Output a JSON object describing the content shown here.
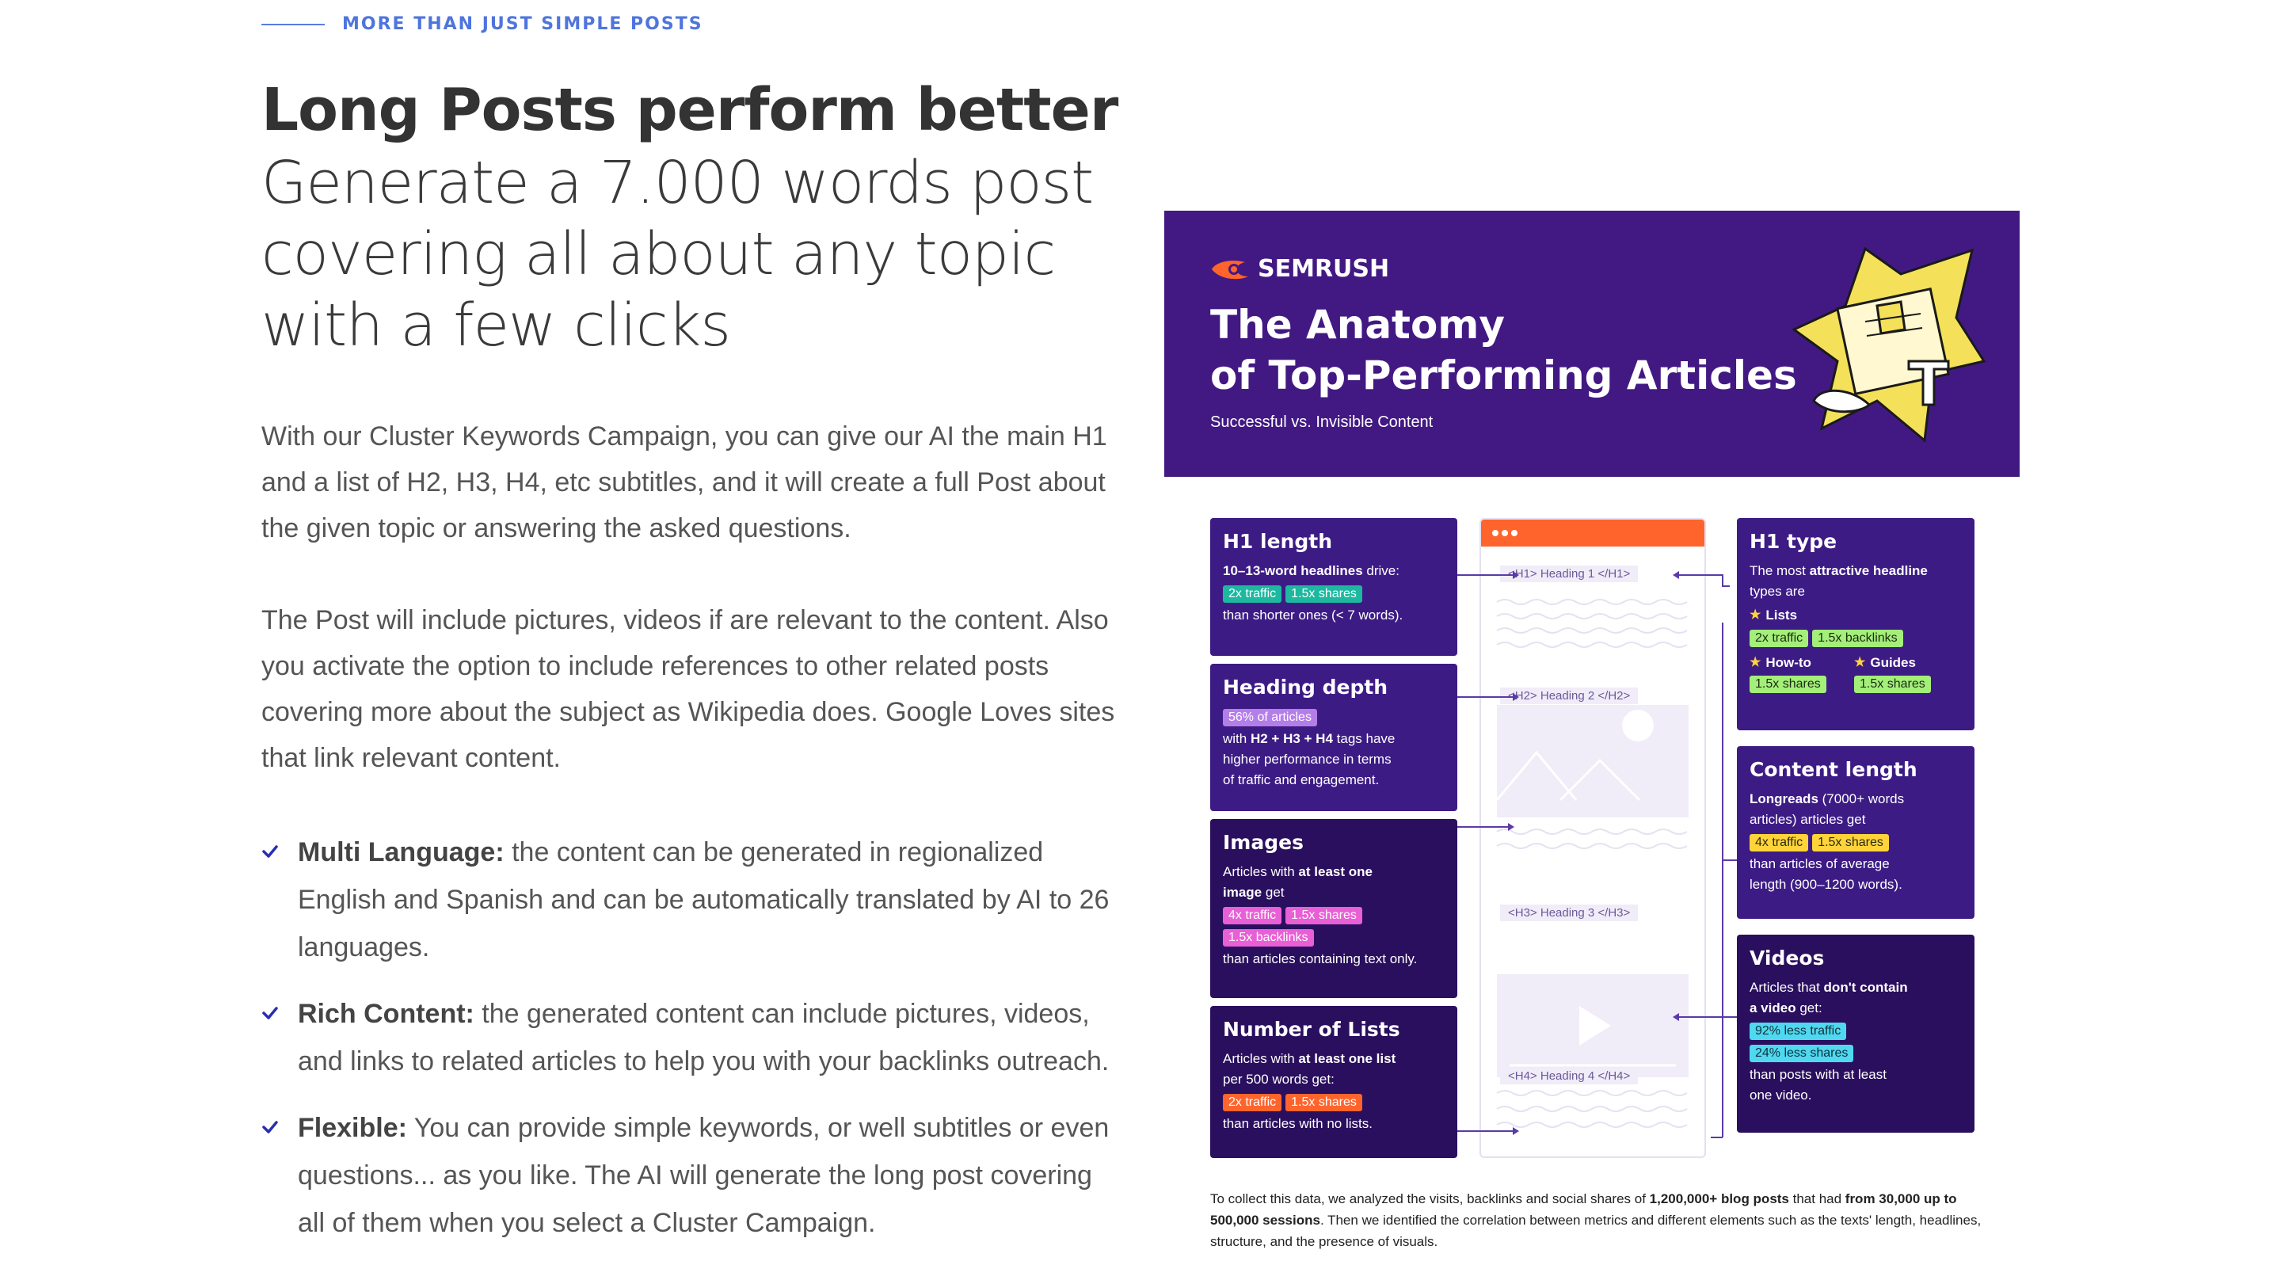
{
  "eyebrow": "MORE THAN JUST SIMPLE POSTS",
  "title": "Long Posts perform better",
  "subtitle": "Generate a 7.000 words post covering all about any topic with a few clicks",
  "paragraph1": "With our Cluster Keywords Campaign, you can give our AI the main H1 and a list of H2, H3, H4, etc subtitles, and it will create a full Post about the given topic or answering the asked questions.",
  "paragraph2": "The Post will include pictures, videos if are relevant to the content. Also you activate the option to include references to other related posts covering more about the subject as Wikipedia does. Google Loves sites that link relevant content.",
  "features": [
    {
      "label": "Multi Language:",
      "text": " the content can be generated in regionalized English and Spanish and can be automatically translated by AI to 26 languages."
    },
    {
      "label": "Rich Content:",
      "text": " the generated content can include pictures, videos, and links to related articles to help you with your backlinks outreach."
    },
    {
      "label": "Flexible:",
      "text": " You can provide simple keywords, or well subtitles or even questions... as you like. The AI will generate the long post covering all of them when you select a Cluster Campaign."
    }
  ],
  "infographic": {
    "brand": "SEMRUSH",
    "title_line1": "The Anatomy",
    "title_line2": "of Top-Performing Articles",
    "subtitle": "Successful vs. Invisible Content",
    "cards": {
      "h1_length": {
        "title": "H1 length",
        "lead_b": "10–13-word headlines",
        "lead": " drive:",
        "tag1": "2x traffic",
        "tag2": "1.5x shares",
        "tail": "than shorter ones (< 7 words)."
      },
      "heading_depth": {
        "title": "Heading depth",
        "tag1": "56% of articles",
        "l1a": "with ",
        "l1b": "H2 + H3 + H4",
        "l1c": " tags have",
        "l2": "higher performance in terms",
        "l3": "of traffic and engagement."
      },
      "images": {
        "title": "Images",
        "l1a": "Articles with ",
        "l1b": "at least one",
        "l2b": "image",
        "l2c": " get",
        "tag1": "4x traffic",
        "tag2": "1.5x shares",
        "tag3": "1.5x backlinks",
        "tail": "than articles containing text only."
      },
      "lists": {
        "title": "Number of Lists",
        "l1a": "Articles with ",
        "l1b": "at least one list",
        "l2": "per 500 words get:",
        "tag1": "2x traffic",
        "tag2": "1.5x shares",
        "tail": "than articles with no lists."
      },
      "h1_type": {
        "title": "H1 type",
        "l1a": "The most ",
        "l1b": "attractive headline",
        "l2": "types are",
        "s1": "Lists",
        "tag1": "2x traffic",
        "tag2": "1.5x backlinks",
        "s2": "How-to",
        "s3": "Guides",
        "tag3": "1.5x shares",
        "tag4": "1.5x shares"
      },
      "content_length": {
        "title": "Content length",
        "l1b": "Longreads",
        "l1c": " (7000+ words",
        "l2": "articles) articles get",
        "tag1": "4x traffic",
        "tag2": "1.5x shares",
        "l3": "than articles of average",
        "l4": "length (900–1200 words)."
      },
      "videos": {
        "title": "Videos",
        "l1a": "Articles that ",
        "l1b": "don't contain",
        "l2b": "a video",
        "l2c": " get:",
        "tag1": "92% less traffic",
        "tag2": "24% less shares",
        "l3": "than posts with at least",
        "l4": "one video."
      }
    },
    "mock_labels": {
      "h1": "<H1> Heading 1 </H1>",
      "h2": "<H2> Heading 2 </H2>",
      "h3": "<H3> Heading 3 </H3>",
      "h4": "<H4> Heading 4 </H4>"
    },
    "footnote": {
      "a": "To collect this data, we analyzed the visits, backlinks and social shares of ",
      "b": "1,200,000+ blog posts",
      "c": " that had ",
      "d": "from 30,000 up to 500,000 sessions",
      "e": ". Then we identified the correlation between metrics and different elements such as the texts' length, headlines, structure, and the presence of visuals."
    },
    "colors": {
      "banner": "#421983",
      "card": "#3d1b85",
      "card_dark": "#2a0f5e",
      "accent": "#ff642d"
    }
  }
}
